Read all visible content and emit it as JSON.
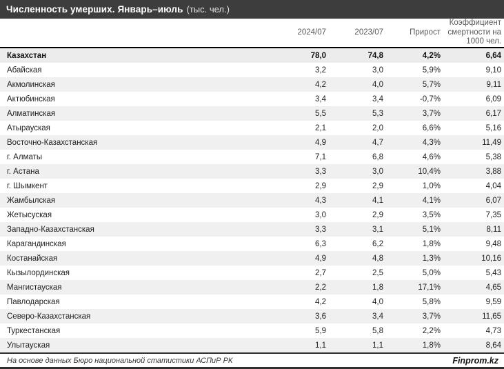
{
  "title": {
    "main": "Численность умерших. Январь–июль",
    "unit": "(тыс. чел.)"
  },
  "chart_data": {
    "type": "table",
    "title": "Численность умерших. Январь–июль (тыс. чел.)",
    "columns": [
      "2024/07",
      "2023/07",
      "Прирост",
      "Коэффициент смертности на 1000 чел."
    ],
    "rows": [
      {
        "name": "Казахстан",
        "v2024": "78,0",
        "v2023": "74,8",
        "growth": "4,2%",
        "rate": "6,64"
      },
      {
        "name": "Абайская",
        "v2024": "3,2",
        "v2023": "3,0",
        "growth": "5,9%",
        "rate": "9,10"
      },
      {
        "name": "Акмолинская",
        "v2024": "4,2",
        "v2023": "4,0",
        "growth": "5,7%",
        "rate": "9,11"
      },
      {
        "name": "Актюбинская",
        "v2024": "3,4",
        "v2023": "3,4",
        "growth": "-0,7%",
        "rate": "6,09"
      },
      {
        "name": "Алматинская",
        "v2024": "5,5",
        "v2023": "5,3",
        "growth": "3,7%",
        "rate": "6,17"
      },
      {
        "name": "Атырауская",
        "v2024": "2,1",
        "v2023": "2,0",
        "growth": "6,6%",
        "rate": "5,16"
      },
      {
        "name": "Восточно-Казахстанская",
        "v2024": "4,9",
        "v2023": "4,7",
        "growth": "4,3%",
        "rate": "11,49"
      },
      {
        "name": "г. Алматы",
        "v2024": "7,1",
        "v2023": "6,8",
        "growth": "4,6%",
        "rate": "5,38"
      },
      {
        "name": "г. Астана",
        "v2024": "3,3",
        "v2023": "3,0",
        "growth": "10,4%",
        "rate": "3,88"
      },
      {
        "name": "г. Шымкент",
        "v2024": "2,9",
        "v2023": "2,9",
        "growth": "1,0%",
        "rate": "4,04"
      },
      {
        "name": "Жамбылская",
        "v2024": "4,3",
        "v2023": "4,1",
        "growth": "4,1%",
        "rate": "6,07"
      },
      {
        "name": "Жетысуская",
        "v2024": "3,0",
        "v2023": "2,9",
        "growth": "3,5%",
        "rate": "7,35"
      },
      {
        "name": "Западно-Казахстанская",
        "v2024": "3,3",
        "v2023": "3,1",
        "growth": "5,1%",
        "rate": "8,11"
      },
      {
        "name": "Карагандинская",
        "v2024": "6,3",
        "v2023": "6,2",
        "growth": "1,8%",
        "rate": "9,48"
      },
      {
        "name": "Костанайская",
        "v2024": "4,9",
        "v2023": "4,8",
        "growth": "1,3%",
        "rate": "10,16"
      },
      {
        "name": "Кызылординская",
        "v2024": "2,7",
        "v2023": "2,5",
        "growth": "5,0%",
        "rate": "5,43"
      },
      {
        "name": "Мангистауская",
        "v2024": "2,2",
        "v2023": "1,8",
        "growth": "17,1%",
        "rate": "4,65"
      },
      {
        "name": "Павлодарская",
        "v2024": "4,2",
        "v2023": "4,0",
        "growth": "5,8%",
        "rate": "9,59"
      },
      {
        "name": "Северо-Казахстанская",
        "v2024": "3,6",
        "v2023": "3,4",
        "growth": "3,7%",
        "rate": "11,65"
      },
      {
        "name": "Туркестанская",
        "v2024": "5,9",
        "v2023": "5,8",
        "growth": "2,2%",
        "rate": "4,73"
      },
      {
        "name": "Улытауская",
        "v2024": "1,1",
        "v2023": "1,1",
        "growth": "1,8%",
        "rate": "8,64"
      }
    ]
  },
  "footer": {
    "source": "На основе данных Бюро национальной статистики АСПиР РК",
    "brand": "Finprom.kz"
  },
  "colors": {
    "titlebar_bg": "#3d3d3d",
    "title_text": "#ffffff",
    "header_text": "#595959",
    "row_shade": "#f0f0f0",
    "total_row_bg": "#ececec",
    "body_text": "#1f1f1f",
    "rule_dark": "#000000"
  }
}
